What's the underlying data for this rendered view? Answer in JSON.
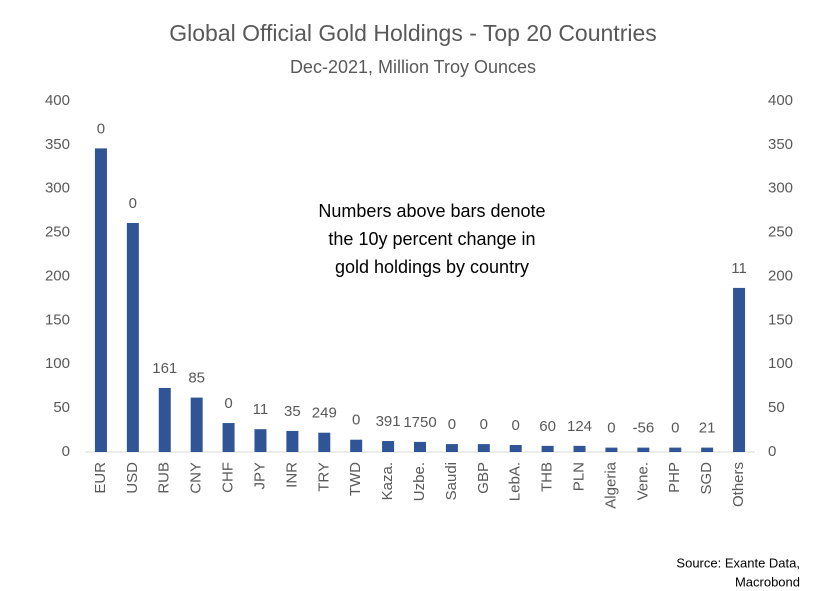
{
  "chart_data": {
    "type": "bar",
    "title": "Global Official Gold Holdings - Top 20 Countries",
    "subtitle": "Dec-2021, Million Troy Ounces",
    "categories": [
      "EUR",
      "USD",
      "RUB",
      "CNY",
      "CHF",
      "JPY",
      "INR",
      "TRY",
      "TWD",
      "Kaza.",
      "Uzbe.",
      "Saudi",
      "GBP",
      "LebA.",
      "THB",
      "PLN",
      "Algeria",
      "Vene.",
      "PHP",
      "SGD",
      "Others"
    ],
    "values": [
      346,
      261,
      73,
      62,
      33,
      26,
      24,
      22,
      14,
      12.5,
      11.5,
      9,
      9,
      8,
      7,
      7,
      5,
      5,
      5,
      5,
      187
    ],
    "bar_labels": [
      0,
      0,
      161,
      85,
      0,
      11,
      35,
      249,
      0,
      391,
      1750,
      0,
      0,
      0,
      60,
      124,
      0,
      -56,
      0,
      21,
      11
    ],
    "color": "#2f5597",
    "ylim": [
      0,
      400
    ],
    "yticks": [
      0,
      50,
      100,
      150,
      200,
      250,
      300,
      350,
      400
    ],
    "y2lim": [
      0,
      400
    ],
    "y2ticks": [
      0,
      50,
      100,
      150,
      200,
      250,
      300,
      350,
      400
    ],
    "annotation": [
      "Numbers above bars denote",
      "the 10y percent change in",
      "gold holdings by country"
    ],
    "source": [
      "Source: Exante Data,",
      "Macrobond"
    ]
  }
}
